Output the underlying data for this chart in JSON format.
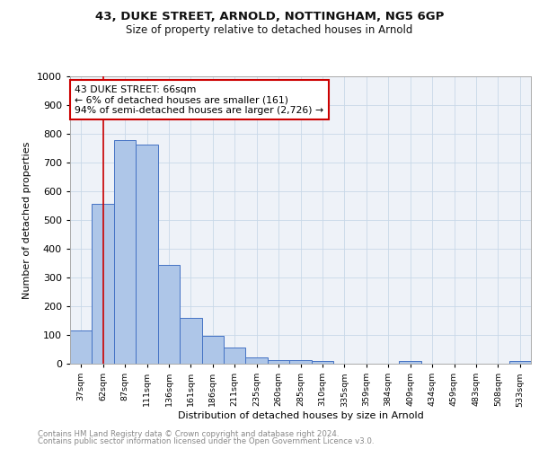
{
  "title1": "43, DUKE STREET, ARNOLD, NOTTINGHAM, NG5 6GP",
  "title2": "Size of property relative to detached houses in Arnold",
  "xlabel": "Distribution of detached houses by size in Arnold",
  "ylabel": "Number of detached properties",
  "categories": [
    "37sqm",
    "62sqm",
    "87sqm",
    "111sqm",
    "136sqm",
    "161sqm",
    "186sqm",
    "211sqm",
    "235sqm",
    "260sqm",
    "285sqm",
    "310sqm",
    "335sqm",
    "359sqm",
    "384sqm",
    "409sqm",
    "434sqm",
    "459sqm",
    "483sqm",
    "508sqm",
    "533sqm"
  ],
  "values": [
    115,
    555,
    778,
    762,
    345,
    160,
    97,
    55,
    22,
    14,
    14,
    8,
    0,
    0,
    0,
    10,
    0,
    0,
    0,
    0,
    10
  ],
  "bar_color": "#aec6e8",
  "bar_edge_color": "#4472c4",
  "grid_color": "#c8d8e8",
  "vline_x": 1,
  "vline_color": "#cc0000",
  "annotation_text": "43 DUKE STREET: 66sqm\n← 6% of detached houses are smaller (161)\n94% of semi-detached houses are larger (2,726) →",
  "annotation_box_color": "#ffffff",
  "annotation_box_edge_color": "#cc0000",
  "ylim": [
    0,
    1000
  ],
  "yticks": [
    0,
    100,
    200,
    300,
    400,
    500,
    600,
    700,
    800,
    900,
    1000
  ],
  "footer_line1": "Contains HM Land Registry data © Crown copyright and database right 2024.",
  "footer_line2": "Contains public sector information licensed under the Open Government Licence v3.0.",
  "bg_color": "#eef2f8"
}
